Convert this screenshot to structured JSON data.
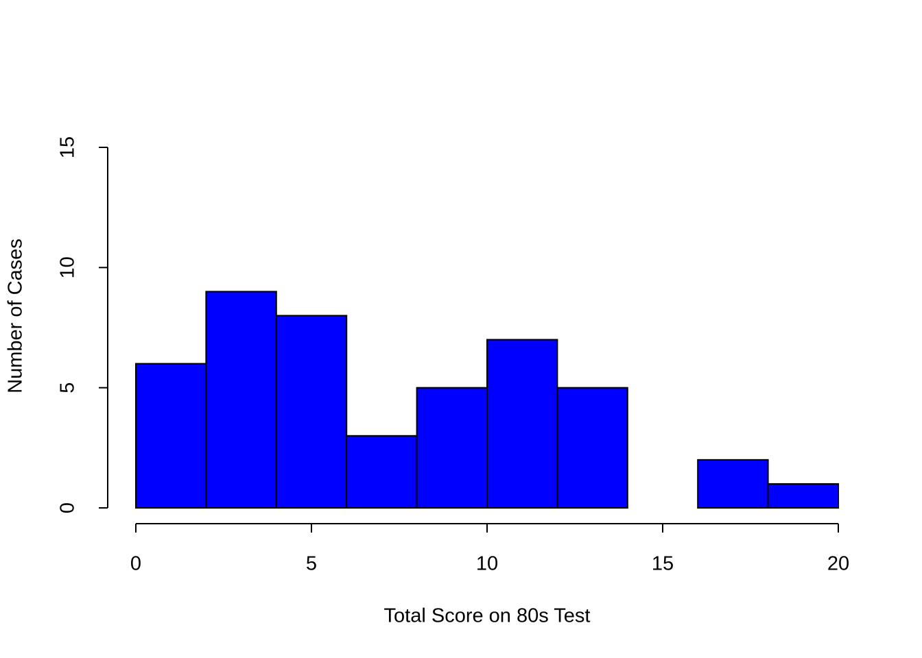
{
  "chart_data": {
    "type": "histogram",
    "x_label": "Total Score on 80s Test",
    "y_label": "Number of Cases",
    "bins": [
      0,
      2,
      4,
      6,
      8,
      10,
      12,
      14,
      16,
      18,
      20
    ],
    "counts": [
      6,
      9,
      8,
      3,
      5,
      7,
      5,
      0,
      2,
      1
    ],
    "color": "#0000ff",
    "xlim": [
      0,
      20
    ],
    "xticks": [
      0,
      5,
      10,
      15,
      20
    ],
    "ylim": [
      0,
      15
    ],
    "yticks": [
      0,
      5,
      10,
      15
    ],
    "grid": false
  }
}
